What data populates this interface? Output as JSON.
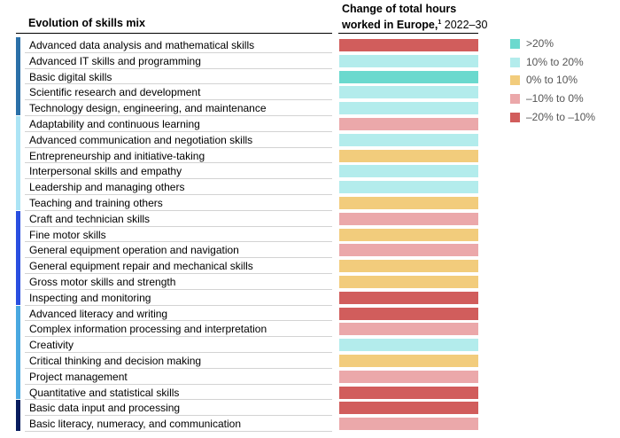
{
  "chart_data": {
    "type": "table",
    "header_left": "Evolution of skills mix",
    "header_right_line1": "Change of total hours",
    "header_right_line2_bold": "worked in Europe,",
    "footnote_marker": "1",
    "header_right_years": " 2022–30",
    "legend": [
      {
        "key": "gt20",
        "label": ">20%",
        "color": "#6bd9ce"
      },
      {
        "key": "10to20",
        "label": "10% to 20%",
        "color": "#b3ecec"
      },
      {
        "key": "0to10",
        "label": "0% to 10%",
        "color": "#f2cc7c"
      },
      {
        "key": "neg10to0",
        "label": "–10% to 0%",
        "color": "#eba8aa"
      },
      {
        "key": "neg20to10",
        "label": "–20% to –10%",
        "color": "#d15d5c"
      }
    ],
    "groups": [
      {
        "color": "#2b70a8",
        "rows": 5
      },
      {
        "color": "#ace4f5",
        "rows": 6
      },
      {
        "color": "#2a4fe0",
        "rows": 6
      },
      {
        "color": "#4aa8e0",
        "rows": 6
      },
      {
        "color": "#071c5e",
        "rows": 2
      }
    ],
    "rows": [
      {
        "skill": "Advanced data analysis and mathematical skills",
        "category": "neg20to10"
      },
      {
        "skill": "Advanced IT skills and programming",
        "category": "10to20"
      },
      {
        "skill": "Basic digital skills",
        "category": "gt20"
      },
      {
        "skill": "Scientific research and development",
        "category": "10to20"
      },
      {
        "skill": "Technology design, engineering, and maintenance",
        "category": "10to20"
      },
      {
        "skill": "Adaptability and continuous learning",
        "category": "neg10to0"
      },
      {
        "skill": "Advanced communication and negotiation skills",
        "category": "10to20"
      },
      {
        "skill": "Entrepreneurship and initiative-taking",
        "category": "0to10"
      },
      {
        "skill": "Interpersonal skills and empathy",
        "category": "10to20"
      },
      {
        "skill": "Leadership and managing others",
        "category": "10to20"
      },
      {
        "skill": "Teaching and training others",
        "category": "0to10"
      },
      {
        "skill": "Craft and technician skills",
        "category": "neg10to0"
      },
      {
        "skill": "Fine motor skills",
        "category": "0to10"
      },
      {
        "skill": "General equipment operation and navigation",
        "category": "neg10to0"
      },
      {
        "skill": "General equipment repair and mechanical skills",
        "category": "0to10"
      },
      {
        "skill": "Gross motor skills and strength",
        "category": "0to10"
      },
      {
        "skill": "Inspecting and monitoring",
        "category": "neg20to10"
      },
      {
        "skill": "Advanced literacy and writing",
        "category": "neg20to10"
      },
      {
        "skill": "Complex information processing and interpretation",
        "category": "neg10to0"
      },
      {
        "skill": "Creativity",
        "category": "10to20"
      },
      {
        "skill": "Critical thinking and decision making",
        "category": "0to10"
      },
      {
        "skill": "Project management",
        "category": "neg10to0"
      },
      {
        "skill": "Quantitative and statistical skills",
        "category": "neg20to10"
      },
      {
        "skill": "Basic data input and processing",
        "category": "neg20to10"
      },
      {
        "skill": "Basic literacy, numeracy, and communication",
        "category": "neg10to0"
      }
    ]
  }
}
